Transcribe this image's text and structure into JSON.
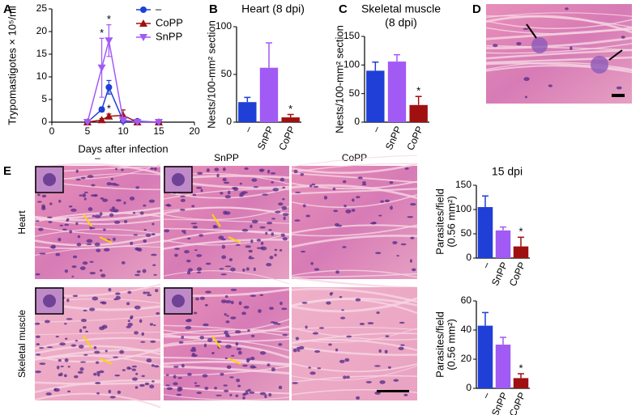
{
  "chart_data": [
    {
      "type": "line",
      "panel": "A",
      "xlabel": "Days after infection",
      "ylabel": "Trypomastigotes × 10⁵/ml",
      "x": [
        5,
        7,
        8,
        10,
        12,
        15
      ],
      "xlim": [
        0,
        20
      ],
      "xticks": [
        0,
        5,
        10,
        15,
        20
      ],
      "ylim": [
        0,
        25
      ],
      "yticks": [
        0,
        5,
        10,
        15,
        20,
        25
      ],
      "series": [
        {
          "name": "–",
          "color": "#1f3fd6",
          "marker": "circle",
          "values": [
            0,
            2.8,
            7.7,
            0.3,
            0.2,
            0
          ],
          "errors": [
            0,
            0.5,
            1.5,
            0.3,
            0.2,
            0
          ],
          "point_labels": [
            null,
            null,
            null,
            null,
            null,
            null
          ]
        },
        {
          "name": "CoPP",
          "color": "#a01010",
          "marker": "triangle-up",
          "values": [
            0,
            0.5,
            1.3,
            1.5,
            0,
            0
          ],
          "errors": [
            0,
            0.3,
            0.5,
            1.2,
            0,
            0
          ],
          "point_labels": [
            null,
            null,
            "*",
            null,
            null,
            null
          ]
        },
        {
          "name": "SnPP",
          "color": "#a25af5",
          "marker": "triangle-down",
          "values": [
            0,
            12,
            18,
            0.5,
            0,
            0
          ],
          "errors": [
            0,
            6.5,
            3.5,
            0.3,
            0,
            0
          ],
          "point_labels": [
            null,
            "*",
            "*",
            null,
            null,
            null
          ]
        }
      ]
    },
    {
      "type": "bar",
      "panel": "B",
      "title": [
        "Heart (8 dpi)"
      ],
      "ylabel": [
        "Nests/100-mm² section"
      ],
      "categories": [
        "–",
        "SnPP",
        "CoPP"
      ],
      "colors": [
        "#1f3fd6",
        "#a25af5",
        "#a01010"
      ],
      "values": [
        21,
        57,
        5
      ],
      "errors": [
        5,
        26,
        3
      ],
      "point_labels": [
        null,
        null,
        "*"
      ],
      "ylim": [
        0,
        100
      ],
      "yticks": [
        0,
        50,
        100
      ]
    },
    {
      "type": "bar",
      "panel": "C",
      "title": [
        "Skeletal muscle",
        "(8 dpi)"
      ],
      "ylabel": [
        "Nests/100-mm² section"
      ],
      "categories": [
        "–",
        "SnPP",
        "CoPP"
      ],
      "colors": [
        "#1f3fd6",
        "#a25af5",
        "#a01010"
      ],
      "values": [
        90,
        106,
        30
      ],
      "errors": [
        15,
        12,
        15
      ],
      "point_labels": [
        null,
        null,
        "*"
      ],
      "ylim": [
        0,
        150
      ],
      "yticks": [
        0,
        50,
        100,
        150
      ]
    },
    {
      "type": "bar",
      "title": [
        "15 dpi"
      ],
      "ylabel": [
        "Parasites/field",
        "(0.56 mm²)"
      ],
      "categories": [
        "–",
        "SnPP",
        "CoPP"
      ],
      "colors": [
        "#1f3fd6",
        "#a25af5",
        "#a01010"
      ],
      "values": [
        105,
        57,
        24
      ],
      "errors": [
        23,
        7,
        19
      ],
      "point_labels": [
        null,
        null,
        "*"
      ],
      "ylim": [
        0,
        150
      ],
      "yticks": [
        0,
        50,
        100,
        150
      ]
    },
    {
      "type": "bar",
      "ylabel": [
        "Parasites/field",
        "(0.56 mm²)"
      ],
      "categories": [
        "–",
        "SnPP",
        "CoPP"
      ],
      "colors": [
        "#1f3fd6",
        "#a25af5",
        "#a01010"
      ],
      "values": [
        43,
        30,
        7
      ],
      "errors": [
        9,
        5,
        3
      ],
      "point_labels": [
        null,
        null,
        "*"
      ],
      "ylim": [
        0,
        60
      ],
      "yticks": [
        0,
        20,
        40,
        60
      ]
    }
  ],
  "micrographs": {
    "panel_d": "D",
    "panel_e": "E",
    "columns": [
      "–",
      "SnPP",
      "CoPP"
    ],
    "rows": [
      "Heart",
      "Skeletal muscle"
    ]
  }
}
